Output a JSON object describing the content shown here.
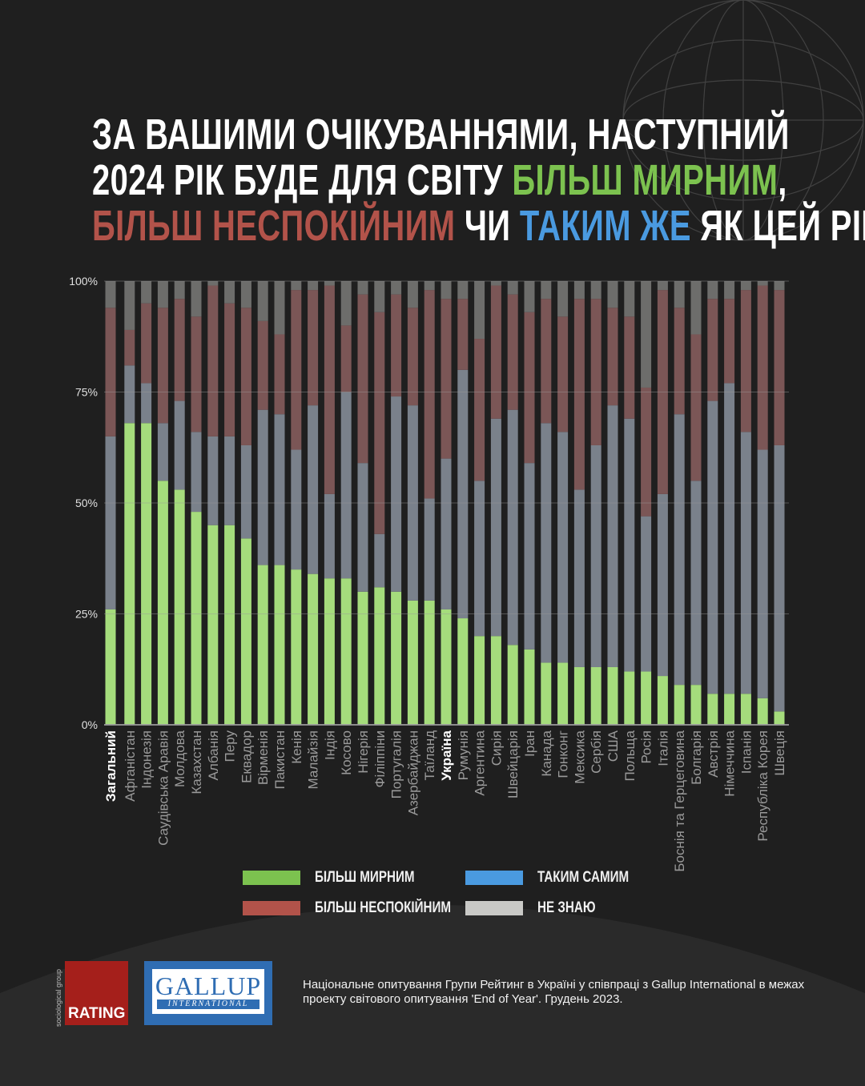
{
  "title": {
    "line1": "ЗА ВАШИМИ ОЧІКУВАННЯМИ, НАСТУПНИЙ",
    "line2_start": "2024 РІК БУДЕ ДЛЯ СВІТУ ",
    "line2_green": "БІЛЬШ МИРНИМ",
    "line2_end": ",",
    "line3_red": "БІЛЬШ НЕСПОКІЙНИМ",
    "line3_mid": " ЧИ ",
    "line3_blue": "ТАКИМ ЖЕ",
    "line3_end": " ЯК ЦЕЙ РІК?"
  },
  "legend": [
    {
      "label": "БІЛЬШ МИРНИМ",
      "color": "#7cc24f"
    },
    {
      "label": "ТАКИМ САМИМ",
      "color": "#4a9ae0"
    },
    {
      "label": "БІЛЬШ НЕСПОКІЙНИМ",
      "color": "#b2534a"
    },
    {
      "label": "НЕ ЗНАЮ",
      "color": "#c9c9c6"
    }
  ],
  "chart_data": {
    "type": "bar",
    "stacked": true,
    "ylim": [
      0,
      100
    ],
    "yticks": [
      "0%",
      "25%",
      "50%",
      "75%",
      "100%"
    ],
    "grid": true,
    "categories": [
      "Загальний",
      "Афганістан",
      "Індонезія",
      "Саудівська Аравія",
      "Молдова",
      "Казахстан",
      "Албанія",
      "Перу",
      "Еквадор",
      "Вірменія",
      "Пакистан",
      "Кенія",
      "Малайзія",
      "Індія",
      "Косово",
      "Нігерія",
      "Філіппіни",
      "Португалія",
      "Азербайджан",
      "Таїланд",
      "Україна",
      "Румунія",
      "Аргентина",
      "Сирія",
      "Швейцарія",
      "Іран",
      "Канада",
      "Гонконг",
      "Мексика",
      "Сербія",
      "США",
      "Польща",
      "Росія",
      "Італія",
      "Боснія та Герцеговина",
      "Болгарія",
      "Австрія",
      "Німеччина",
      "Іспанія",
      "Республіка Корея",
      "Швеція"
    ],
    "highlighted": [
      "Загальний",
      "Україна"
    ],
    "series": [
      {
        "name": "БІЛЬШ МИРНИМ",
        "color": "#a5dc7c",
        "values": [
          26,
          68,
          68,
          55,
          53,
          48,
          45,
          45,
          42,
          36,
          36,
          35,
          34,
          33,
          33,
          30,
          31,
          30,
          28,
          28,
          26,
          24,
          20,
          20,
          18,
          17,
          14,
          14,
          13,
          13,
          13,
          12,
          12,
          11,
          9,
          9,
          7,
          7,
          7,
          6,
          3
        ]
      },
      {
        "name": "ТАКИМ САМИМ",
        "color": "#7a818b",
        "values": [
          39,
          13,
          9,
          13,
          20,
          18,
          20,
          20,
          21,
          35,
          34,
          27,
          38,
          19,
          42,
          29,
          12,
          44,
          44,
          23,
          34,
          56,
          35,
          49,
          53,
          42,
          54,
          52,
          40,
          50,
          59,
          57,
          35,
          41,
          61,
          46,
          66,
          70,
          59,
          56,
          60
        ]
      },
      {
        "name": "БІЛЬШ НЕСПОКІЙНИМ",
        "color": "#7b5656",
        "values": [
          29,
          8,
          18,
          26,
          23,
          26,
          34,
          30,
          31,
          20,
          18,
          36,
          26,
          47,
          15,
          38,
          50,
          23,
          22,
          47,
          36,
          16,
          32,
          30,
          26,
          34,
          28,
          26,
          43,
          33,
          22,
          23,
          29,
          46,
          24,
          33,
          23,
          19,
          32,
          37,
          35
        ]
      },
      {
        "name": "НЕ ЗНАЮ",
        "color": "#6d6d6b",
        "values": [
          6,
          11,
          5,
          6,
          4,
          8,
          1,
          5,
          6,
          9,
          12,
          2,
          2,
          1,
          10,
          3,
          7,
          3,
          6,
          2,
          4,
          4,
          13,
          1,
          3,
          7,
          4,
          8,
          4,
          4,
          6,
          8,
          24,
          2,
          6,
          12,
          4,
          4,
          2,
          1,
          2
        ]
      }
    ]
  },
  "logos": {
    "rating": "RATING",
    "rating_side": "sociological group",
    "gallup": "GALLUP",
    "gallup_sub": "INTERNATIONAL"
  },
  "footnote": "Національне опитування Групи Рейтинг в Україні у співпраці з Gallup International в межах проекту світового опитування 'End of Year'. Грудень 2023."
}
